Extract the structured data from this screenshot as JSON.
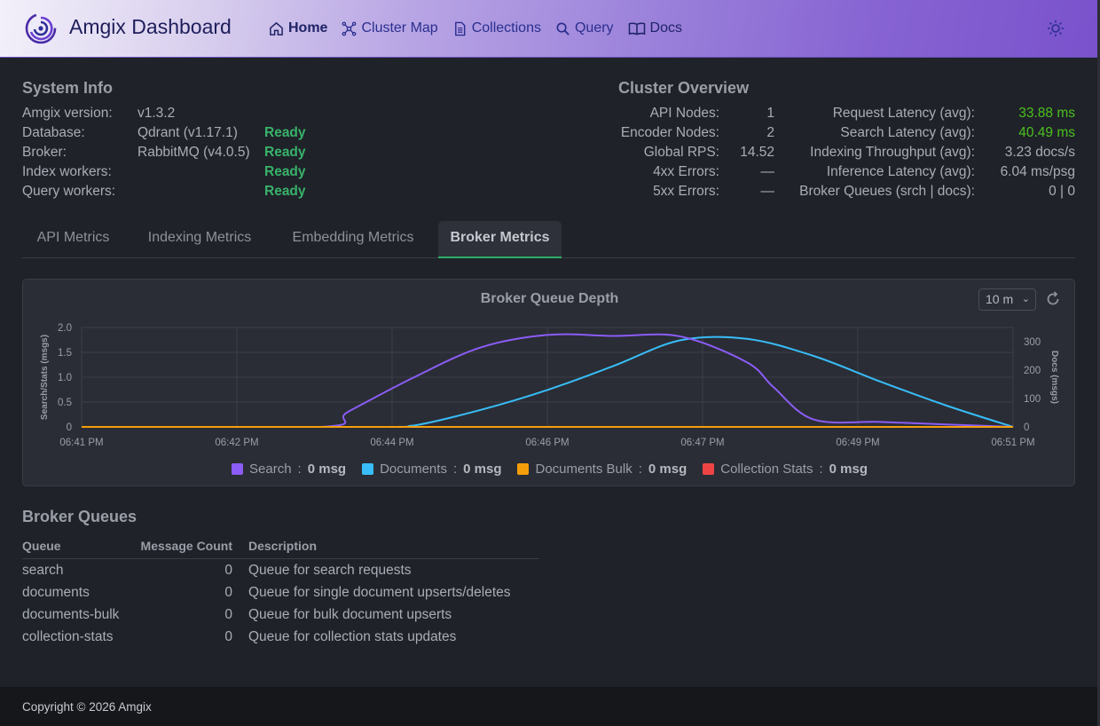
{
  "header": {
    "brand": "Amgix Dashboard",
    "nav": [
      {
        "label": "Home",
        "icon": "home-icon",
        "active": true
      },
      {
        "label": "Cluster Map",
        "icon": "cluster-map-icon"
      },
      {
        "label": "Collections",
        "icon": "document-icon"
      },
      {
        "label": "Query",
        "icon": "search-icon"
      },
      {
        "label": "Docs",
        "icon": "book-icon"
      }
    ]
  },
  "system_info": {
    "title": "System Info",
    "rows": [
      {
        "label": "Amgix version:",
        "value": "v1.3.2",
        "status": ""
      },
      {
        "label": "Database:",
        "value": "Qdrant (v1.17.1)",
        "status": "Ready"
      },
      {
        "label": "Broker:",
        "value": "RabbitMQ (v4.0.5)",
        "status": "Ready"
      },
      {
        "label": "Index workers:",
        "value": "",
        "status": "Ready"
      },
      {
        "label": "Query workers:",
        "value": "",
        "status": "Ready"
      }
    ]
  },
  "cluster_overview": {
    "title": "Cluster Overview",
    "left": [
      {
        "label": "API Nodes:",
        "value": "1"
      },
      {
        "label": "Encoder Nodes:",
        "value": "2"
      },
      {
        "label": "Global RPS:",
        "value": "14.52"
      },
      {
        "label": "4xx Errors:",
        "value": "—"
      },
      {
        "label": "5xx Errors:",
        "value": "—"
      }
    ],
    "right": [
      {
        "label": "Request Latency (avg):",
        "value": "33.88 ms"
      },
      {
        "label": "Search Latency (avg):",
        "value": "40.49 ms"
      },
      {
        "label": "Indexing Throughput (avg):",
        "value": "3.23 docs/s"
      },
      {
        "label": "Inference Latency (avg):",
        "value": "6.04 ms/psg"
      },
      {
        "label": "Broker Queues (srch | docs):",
        "value": "0 | 0"
      }
    ]
  },
  "tabs": [
    {
      "label": "API Metrics"
    },
    {
      "label": "Indexing Metrics"
    },
    {
      "label": "Embedding Metrics"
    },
    {
      "label": "Broker Metrics",
      "active": true
    }
  ],
  "chart": {
    "range": "10 m",
    "chart_data": {
      "type": "line",
      "title": "Broker Queue Depth",
      "ylabel": "Search/Stats (msgs)",
      "y2label": "Docs (msgs)",
      "ylim": [
        0,
        2.0
      ],
      "y2lim": [
        0,
        350
      ],
      "yticks": [
        "0",
        "0.5",
        "1.0",
        "1.5",
        "2.0"
      ],
      "y2ticks": [
        "0",
        "100",
        "200",
        "300"
      ],
      "xticks": [
        "06:41 PM",
        "06:42 PM",
        "06:44 PM",
        "06:46 PM",
        "06:47 PM",
        "06:49 PM",
        "06:51 PM"
      ],
      "grid": true,
      "series": [
        {
          "name": "Search",
          "legend_value": "0 msg",
          "axis": "left",
          "color": "#8b5cf6",
          "x": [
            0,
            1.8,
            2.0,
            2.5,
            3.0,
            3.5,
            4.0,
            4.5,
            5.0,
            5.2,
            5.5,
            6.0,
            6.5,
            7.0
          ],
          "y": [
            0,
            0,
            0.3,
            1.0,
            1.6,
            1.85,
            1.83,
            1.82,
            1.3,
            0.8,
            0.15,
            0.1,
            0.05,
            0
          ]
        },
        {
          "name": "Documents",
          "legend_value": "0 msg",
          "axis": "right",
          "color": "#38bdf8",
          "x": [
            0,
            2.2,
            2.5,
            3.0,
            3.5,
            4.0,
            4.5,
            5.0,
            5.5,
            6.0,
            6.5,
            7.0
          ],
          "y": [
            0,
            0,
            5,
            60,
            130,
            215,
            305,
            310,
            250,
            160,
            75,
            0
          ]
        },
        {
          "name": "Documents Bulk",
          "legend_value": "0 msg",
          "axis": "right",
          "color": "#f59e0b",
          "x": [
            0,
            7.0
          ],
          "y": [
            0,
            0
          ]
        },
        {
          "name": "Collection Stats",
          "legend_value": "0 msg",
          "axis": "left",
          "color": "#ef4444",
          "x": [
            0,
            7.0
          ],
          "y": [
            0,
            0
          ]
        }
      ]
    }
  },
  "broker_queues": {
    "title": "Broker Queues",
    "columns": [
      "Queue",
      "Message Count",
      "Description"
    ],
    "rows": [
      {
        "queue": "search",
        "count": "0",
        "description": "Queue for search requests"
      },
      {
        "queue": "documents",
        "count": "0",
        "description": "Queue for single document upserts/deletes"
      },
      {
        "queue": "documents-bulk",
        "count": "0",
        "description": "Queue for bulk document upserts"
      },
      {
        "queue": "collection-stats",
        "count": "0",
        "description": "Queue for collection stats updates"
      }
    ]
  },
  "footer": {
    "text": "Copyright © 2026 Amgix"
  }
}
